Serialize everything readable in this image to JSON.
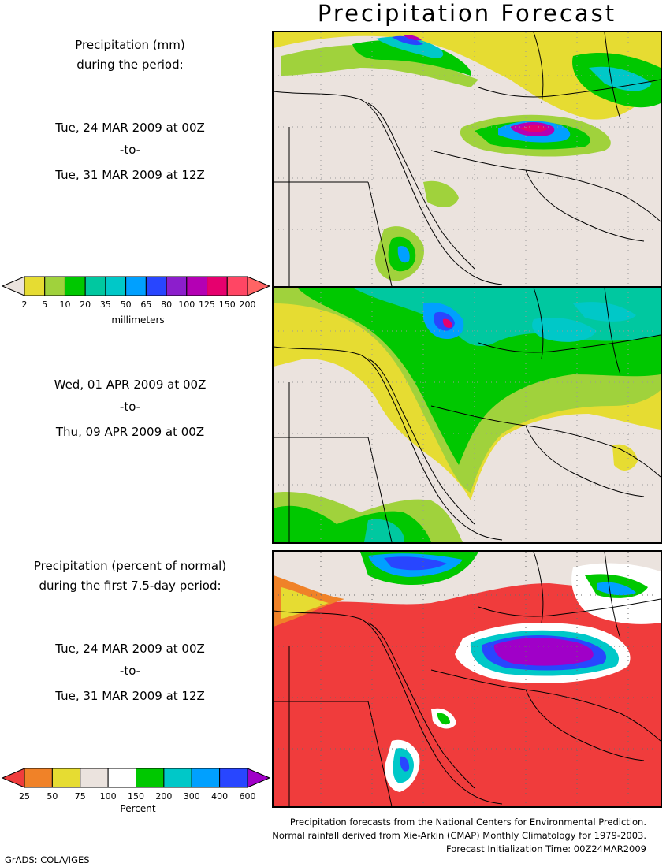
{
  "title": "Precipitation Forecast",
  "panel1": {
    "heading_line1": "Precipitation (mm)",
    "heading_line2": "during the period:",
    "start": "Tue, 24 MAR 2009 at 00Z",
    "to": "-to-",
    "end": "Tue, 31 MAR 2009 at 12Z"
  },
  "panel2": {
    "start": "Wed, 01 APR 2009 at 00Z",
    "to": "-to-",
    "end": "Thu, 09 APR 2009 at 00Z"
  },
  "panel3": {
    "heading_line1": "Precipitation (percent of normal)",
    "heading_line2": "during the first 7.5-day period:",
    "start": "Tue, 24 MAR 2009 at 00Z",
    "to": "-to-",
    "end": "Tue, 31 MAR 2009 at 12Z"
  },
  "colorbar_mm": {
    "labels": [
      "2",
      "5",
      "10",
      "20",
      "35",
      "50",
      "65",
      "80",
      "100",
      "125",
      "150",
      "200"
    ],
    "colors": [
      "#ebe3de",
      "#e6dc32",
      "#a0d23c",
      "#00c800",
      "#00c8a0",
      "#00c8c8",
      "#00a0ff",
      "#2846ff",
      "#8c1ecc",
      "#b400b4",
      "#e6006e",
      "#ff4664",
      "#ff6464"
    ],
    "unit": "millimeters"
  },
  "colorbar_pct": {
    "labels": [
      "25",
      "50",
      "75",
      "100",
      "150",
      "200",
      "300",
      "400",
      "600"
    ],
    "colors": [
      "#f03c3c",
      "#f08228",
      "#e6dc32",
      "#ebe3de",
      "#ffffff",
      "#00c800",
      "#00c8c8",
      "#00a0ff",
      "#2846ff",
      "#a000c8"
    ],
    "unit": "Percent"
  },
  "notes": [
    "Precipitation forecasts from the National Centers for Environmental Prediction.",
    "Normal rainfall derived from Xie-Arkin (CMAP) Monthly Climatology for 1979-2003.",
    "Forecast Initialization Time: 00Z24MAR2009"
  ],
  "credit": "GrADS: COLA/IGES"
}
